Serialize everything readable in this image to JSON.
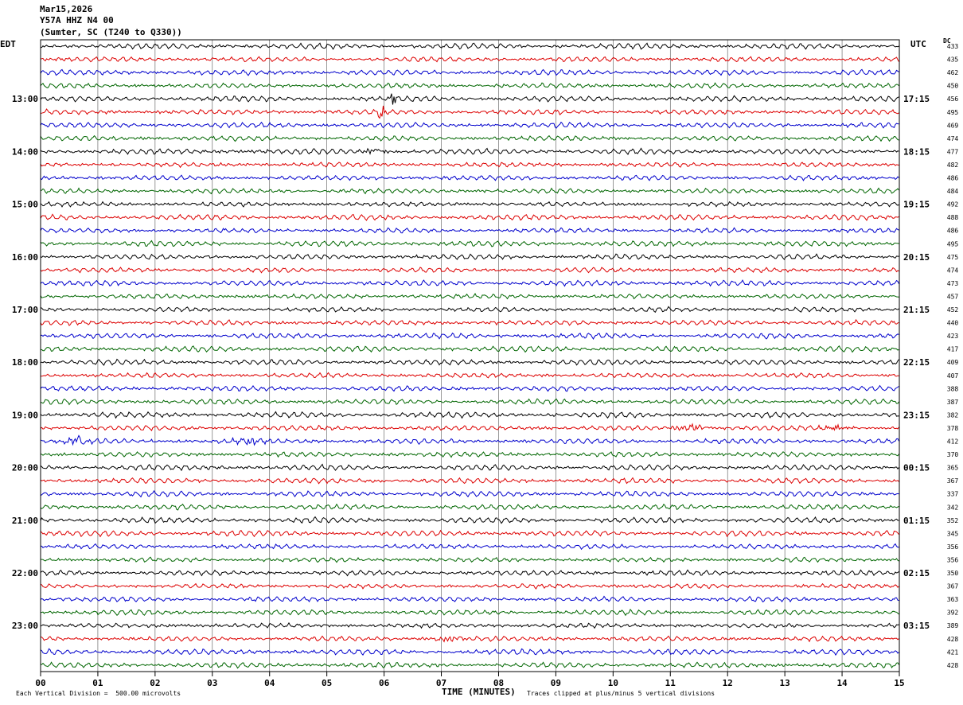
{
  "header": {
    "date": "Mar15,2026",
    "station": "Y57A HHZ N4 00",
    "location": "(Sumter, SC (T240 to Q330))"
  },
  "left_tz": "EDT",
  "right_tz": "UTC",
  "dc_label": "DC",
  "footer": {
    "scale": "Each Vertical Division =  500.00 microvolts",
    "xlabel": "TIME (MINUTES)",
    "clip": "Traces clipped at plus/minus 5 vertical divisions"
  },
  "chart_data": {
    "type": "line",
    "title": "Y57A HHZ N4 00",
    "xlabel": "TIME (MINUTES)",
    "xlim": [
      0,
      15
    ],
    "x_ticks": [
      "00",
      "01",
      "02",
      "03",
      "04",
      "05",
      "06",
      "07",
      "08",
      "09",
      "10",
      "11",
      "12",
      "13",
      "14",
      "15"
    ],
    "trace_colors": [
      "#000000",
      "#dd0000",
      "#0000cc",
      "#006600"
    ],
    "left_hour_labels": [
      "13:00",
      "14:00",
      "15:00",
      "16:00",
      "17:00",
      "18:00",
      "19:00",
      "20:00",
      "21:00",
      "22:00",
      "23:00"
    ],
    "right_hour_labels": [
      "17:15",
      "18:15",
      "19:15",
      "20:15",
      "21:15",
      "22:15",
      "23:15",
      "00:15",
      "01:15",
      "02:15",
      "03:15"
    ],
    "dc_offsets": [
      433,
      435,
      462,
      450,
      456,
      495,
      469,
      474,
      477,
      482,
      486,
      484,
      492,
      488,
      486,
      495,
      475,
      474,
      473,
      457,
      452,
      440,
      423,
      417,
      409,
      407,
      388,
      387,
      382,
      378,
      412,
      370,
      365,
      367,
      337,
      342,
      352,
      345,
      356,
      356,
      350,
      367,
      363,
      392,
      389,
      428,
      421,
      428
    ],
    "events": [
      {
        "trace": 5,
        "x_min": 5.95,
        "amp": 3.0,
        "kind": "spike"
      },
      {
        "trace": 4,
        "x_min": 6.15,
        "amp": 2.2,
        "kind": "spike"
      },
      {
        "trace": 8,
        "x_min": 5.9,
        "amp": 1.6,
        "kind": "burst"
      },
      {
        "trace": 29,
        "x_min": 11.35,
        "amp": 2.0,
        "kind": "burst"
      },
      {
        "trace": 29,
        "x_min": 13.9,
        "amp": 1.2,
        "kind": "burst"
      },
      {
        "trace": 30,
        "x_min": 0.6,
        "amp": 2.0,
        "kind": "burst"
      },
      {
        "trace": 30,
        "x_min": 3.7,
        "amp": 2.0,
        "kind": "burst"
      },
      {
        "trace": 45,
        "x_min": 7.2,
        "amp": 1.3,
        "kind": "burst"
      }
    ]
  }
}
